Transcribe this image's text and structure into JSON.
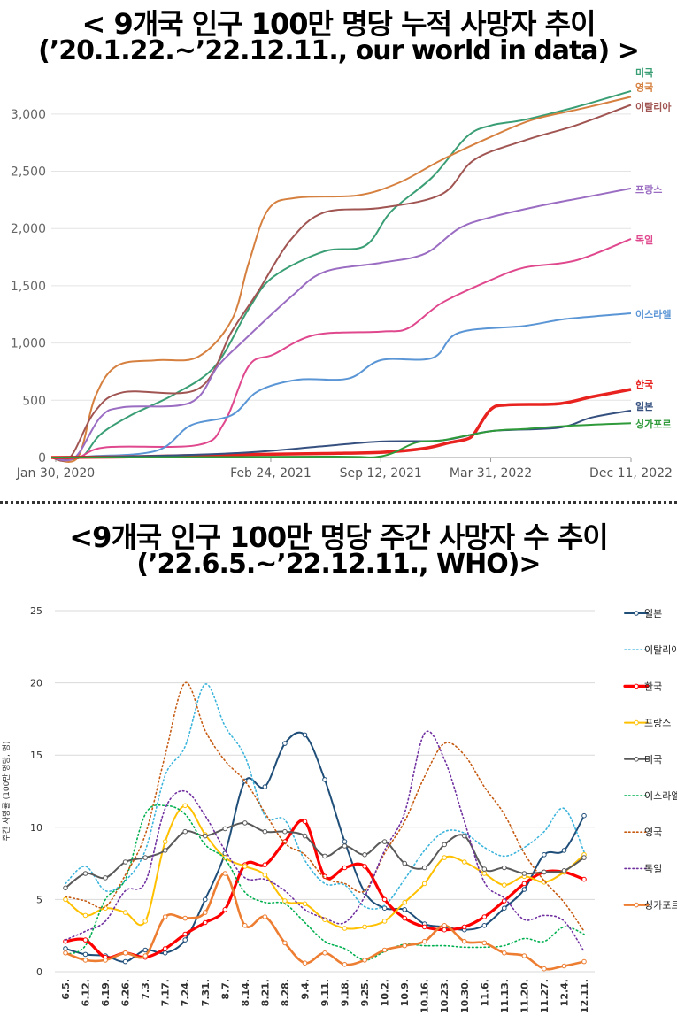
{
  "titles": {
    "top_line1": "< 9개국 인구 100만 명당 누적 사망자 추이",
    "top_line2": "(’20.1.22.~’22.12.11., our world in data) >",
    "bottom_line1": "<9개국 인구 100만 명당 주간 사망자 수 추이",
    "bottom_line2": "(’22.6.5.~’22.12.11., WHO)>"
  },
  "chart_data": [
    {
      "type": "line",
      "x_tick_labels": [
        "Jan 30, 2020",
        "Feb 24, 2021",
        "Sep 12, 2021",
        "Mar 31, 2022",
        "Dec 11, 2022"
      ],
      "x_tick_dates": [
        "2020-01-30",
        "2021-02-24",
        "2021-09-12",
        "2022-03-31",
        "2022-12-11"
      ],
      "x_range": [
        "2020-01-22",
        "2022-12-11"
      ],
      "ylim": [
        0,
        3300
      ],
      "y_ticks": [
        0,
        500,
        1000,
        1500,
        2000,
        2500,
        3000
      ],
      "y_tick_labels": [
        "0",
        "500",
        "1,000",
        "1,500",
        "2,000",
        "2,500",
        "3,000"
      ],
      "grid": true,
      "legend": "line-end labels",
      "series": [
        {
          "name": "미국",
          "color": "#3a9e75",
          "points": [
            [
              "2020-01-22",
              0
            ],
            [
              "2020-03-15",
              0
            ],
            [
              "2020-04-20",
              200
            ],
            [
              "2020-06-15",
              370
            ],
            [
              "2020-09-01",
              550
            ],
            [
              "2020-11-15",
              800
            ],
            [
              "2021-01-15",
              1300
            ],
            [
              "2021-03-01",
              1580
            ],
            [
              "2021-06-01",
              1800
            ],
            [
              "2021-08-15",
              1850
            ],
            [
              "2021-10-01",
              2150
            ],
            [
              "2021-12-15",
              2450
            ],
            [
              "2022-02-15",
              2800
            ],
            [
              "2022-03-31",
              2900
            ],
            [
              "2022-06-01",
              2950
            ],
            [
              "2022-09-01",
              3060
            ],
            [
              "2022-12-11",
              3200
            ]
          ]
        },
        {
          "name": "영국",
          "color": "#d68040",
          "points": [
            [
              "2020-01-22",
              0
            ],
            [
              "2020-03-10",
              0
            ],
            [
              "2020-04-10",
              520
            ],
            [
              "2020-05-20",
              800
            ],
            [
              "2020-08-01",
              850
            ],
            [
              "2020-10-15",
              880
            ],
            [
              "2020-12-15",
              1200
            ],
            [
              "2021-01-15",
              1700
            ],
            [
              "2021-02-20",
              2170
            ],
            [
              "2021-04-15",
              2270
            ],
            [
              "2021-08-01",
              2290
            ],
            [
              "2021-10-15",
              2400
            ],
            [
              "2022-01-01",
              2600
            ],
            [
              "2022-03-31",
              2800
            ],
            [
              "2022-06-15",
              2950
            ],
            [
              "2022-09-15",
              3050
            ],
            [
              "2022-12-11",
              3150
            ]
          ]
        },
        {
          "name": "이탈리아",
          "color": "#a05552",
          "points": [
            [
              "2020-01-22",
              0
            ],
            [
              "2020-02-25",
              0
            ],
            [
              "2020-04-10",
              400
            ],
            [
              "2020-06-01",
              570
            ],
            [
              "2020-10-15",
              600
            ],
            [
              "2020-12-15",
              1100
            ],
            [
              "2021-02-01",
              1450
            ],
            [
              "2021-04-01",
              1900
            ],
            [
              "2021-06-01",
              2140
            ],
            [
              "2021-09-12",
              2180
            ],
            [
              "2022-01-01",
              2300
            ],
            [
              "2022-03-01",
              2600
            ],
            [
              "2022-06-01",
              2770
            ],
            [
              "2022-09-01",
              2900
            ],
            [
              "2022-12-11",
              3080
            ]
          ]
        },
        {
          "name": "프랑스",
          "color": "#9a6cc2",
          "points": [
            [
              "2020-01-22",
              0
            ],
            [
              "2020-03-05",
              0
            ],
            [
              "2020-04-20",
              350
            ],
            [
              "2020-06-01",
              440
            ],
            [
              "2020-10-01",
              480
            ],
            [
              "2020-11-20",
              800
            ],
            [
              "2021-01-01",
              1000
            ],
            [
              "2021-04-01",
              1400
            ],
            [
              "2021-06-01",
              1620
            ],
            [
              "2021-09-12",
              1700
            ],
            [
              "2021-12-01",
              1780
            ],
            [
              "2022-02-01",
              2000
            ],
            [
              "2022-04-01",
              2100
            ],
            [
              "2022-07-01",
              2200
            ],
            [
              "2022-09-15",
              2270
            ],
            [
              "2022-12-11",
              2350
            ]
          ]
        },
        {
          "name": "독일",
          "color": "#e0488e",
          "points": [
            [
              "2020-01-22",
              0
            ],
            [
              "2020-03-10",
              0
            ],
            [
              "2020-05-01",
              90
            ],
            [
              "2020-10-15",
              110
            ],
            [
              "2020-12-01",
              300
            ],
            [
              "2021-01-15",
              800
            ],
            [
              "2021-03-01",
              900
            ],
            [
              "2021-05-15",
              1070
            ],
            [
              "2021-09-12",
              1100
            ],
            [
              "2021-11-01",
              1130
            ],
            [
              "2022-01-01",
              1350
            ],
            [
              "2022-03-31",
              1550
            ],
            [
              "2022-06-01",
              1660
            ],
            [
              "2022-09-01",
              1720
            ],
            [
              "2022-12-11",
              1910
            ]
          ]
        },
        {
          "name": "이스라엘",
          "color": "#5a95d5",
          "points": [
            [
              "2020-01-22",
              0
            ],
            [
              "2020-04-01",
              10
            ],
            [
              "2020-08-01",
              60
            ],
            [
              "2020-10-01",
              280
            ],
            [
              "2020-12-15",
              370
            ],
            [
              "2021-02-01",
              580
            ],
            [
              "2021-04-15",
              680
            ],
            [
              "2021-07-15",
              690
            ],
            [
              "2021-09-12",
              850
            ],
            [
              "2021-12-15",
              870
            ],
            [
              "2022-02-01",
              1090
            ],
            [
              "2022-06-01",
              1150
            ],
            [
              "2022-08-15",
              1210
            ],
            [
              "2022-12-11",
              1260
            ]
          ]
        },
        {
          "name": "한국",
          "color": "#e8221e",
          "points": [
            [
              "2020-01-22",
              0
            ],
            [
              "2020-06-01",
              5
            ],
            [
              "2021-01-01",
              25
            ],
            [
              "2021-06-01",
              35
            ],
            [
              "2021-09-12",
              45
            ],
            [
              "2021-12-01",
              80
            ],
            [
              "2022-01-15",
              130
            ],
            [
              "2022-02-15",
              160
            ],
            [
              "2022-03-01",
              210
            ],
            [
              "2022-03-31",
              420
            ],
            [
              "2022-05-01",
              460
            ],
            [
              "2022-08-01",
              470
            ],
            [
              "2022-10-01",
              530
            ],
            [
              "2022-12-11",
              595
            ]
          ]
        },
        {
          "name": "일본",
          "color": "#35507f",
          "points": [
            [
              "2020-01-22",
              0
            ],
            [
              "2020-06-01",
              8
            ],
            [
              "2021-01-01",
              40
            ],
            [
              "2021-06-01",
              100
            ],
            [
              "2021-09-12",
              140
            ],
            [
              "2022-01-01",
              150
            ],
            [
              "2022-03-31",
              230
            ],
            [
              "2022-08-01",
              260
            ],
            [
              "2022-10-01",
              350
            ],
            [
              "2022-12-11",
              410
            ]
          ]
        },
        {
          "name": "싱가포르",
          "color": "#2f9a3a",
          "points": [
            [
              "2020-01-22",
              0
            ],
            [
              "2021-06-01",
              8
            ],
            [
              "2021-09-12",
              10
            ],
            [
              "2021-11-15",
              130
            ],
            [
              "2022-01-01",
              150
            ],
            [
              "2022-03-31",
              230
            ],
            [
              "2022-06-01",
              250
            ],
            [
              "2022-09-01",
              280
            ],
            [
              "2022-12-11",
              300
            ]
          ]
        }
      ]
    },
    {
      "type": "line",
      "ylabel": "주간 사망률 (100만 명당, 명)",
      "categories": [
        "6.5.",
        "6.12.",
        "6.19.",
        "6.26.",
        "7.3.",
        "7.17.",
        "7.24.",
        "7.31.",
        "8.7.",
        "8.14.",
        "8.21.",
        "8.28.",
        "9.4.",
        "9.11.",
        "9.18.",
        "9.25.",
        "10.2.",
        "10.9.",
        "10.16.",
        "10.23.",
        "10.30.",
        "11.6.",
        "11.13.",
        "11.20.",
        "11.27.",
        "12.4.",
        "12.11."
      ],
      "ylim": [
        0,
        25
      ],
      "y_ticks": [
        0,
        5,
        10,
        15,
        20,
        25
      ],
      "grid": true,
      "legend": "right",
      "series": [
        {
          "name": "일본",
          "color": "#1f4e79",
          "dash": "solid",
          "width": 2,
          "values": [
            1.6,
            1.2,
            1.1,
            0.7,
            1.5,
            1.3,
            2.2,
            5.0,
            8.2,
            13.2,
            12.8,
            15.8,
            16.4,
            13.3,
            9.0,
            5.5,
            4.4,
            4.3,
            3.3,
            3.1,
            2.9,
            3.2,
            4.4,
            5.7,
            8.1,
            8.4,
            10.8
          ]
        },
        {
          "name": "이탈리아",
          "color": "#3bb4dc",
          "dash": "dot",
          "width": 1.6,
          "values": [
            6.1,
            7.3,
            5.6,
            6.3,
            8.4,
            13.6,
            15.6,
            19.9,
            17.0,
            14.9,
            10.8,
            10.5,
            7.7,
            6.1,
            6.0,
            4.5,
            4.6,
            6.4,
            8.4,
            9.7,
            9.6,
            8.6,
            8.0,
            8.6,
            9.7,
            11.3,
            8.3
          ]
        },
        {
          "name": "한국",
          "color": "#ff0000",
          "dash": "solid",
          "width": 3.2,
          "values": [
            2.1,
            2.2,
            1.0,
            1.3,
            1.0,
            1.6,
            2.6,
            3.4,
            4.3,
            7.4,
            7.4,
            9.0,
            10.4,
            6.6,
            7.2,
            7.3,
            5.0,
            3.7,
            3.1,
            2.9,
            3.1,
            3.8,
            4.9,
            6.1,
            6.9,
            6.9,
            6.4
          ]
        },
        {
          "name": "프랑스",
          "color": "#ffc000",
          "dash": "solid",
          "width": 2,
          "values": [
            5.0,
            3.9,
            4.4,
            4.1,
            3.5,
            9.0,
            11.5,
            9.5,
            7.9,
            7.3,
            6.7,
            4.9,
            4.7,
            3.6,
            3.0,
            3.1,
            3.5,
            4.8,
            6.1,
            7.9,
            7.6,
            6.8,
            6.0,
            6.6,
            6.2,
            6.9,
            8.1
          ]
        },
        {
          "name": "미국",
          "color": "#595959",
          "dash": "solid",
          "width": 2,
          "values": [
            5.8,
            6.8,
            6.5,
            7.6,
            7.9,
            8.4,
            9.7,
            9.4,
            9.9,
            10.3,
            9.7,
            9.7,
            9.4,
            8.0,
            8.7,
            8.1,
            9.0,
            7.5,
            7.2,
            8.8,
            9.4,
            7.1,
            7.2,
            6.8,
            6.9,
            7.0,
            7.9
          ]
        },
        {
          "name": "이스라엘",
          "color": "#00b050",
          "dash": "dot",
          "width": 1.6,
          "values": [
            1.2,
            1.8,
            5.0,
            6.4,
            10.9,
            11.5,
            10.9,
            8.8,
            7.8,
            5.5,
            4.8,
            4.7,
            3.4,
            2.1,
            1.6,
            0.8,
            1.4,
            1.9,
            1.8,
            1.8,
            1.7,
            1.7,
            1.8,
            2.3,
            2.1,
            3.1,
            2.6
          ]
        },
        {
          "name": "영국",
          "color": "#c55a11",
          "dash": "dot",
          "width": 1.6,
          "values": [
            5.2,
            4.9,
            4.5,
            6.7,
            9.5,
            15.0,
            20.0,
            16.7,
            14.6,
            13.2,
            11.0,
            8.9,
            8.1,
            6.5,
            6.1,
            5.6,
            8.2,
            10.4,
            13.5,
            15.8,
            15.0,
            12.8,
            10.9,
            8.2,
            6.3,
            4.8,
            2.8
          ]
        },
        {
          "name": "독일",
          "color": "#7030a0",
          "dash": "dot",
          "width": 1.6,
          "values": [
            2.2,
            2.8,
            3.5,
            5.6,
            6.2,
            11.3,
            12.5,
            10.8,
            8.4,
            6.5,
            6.4,
            5.6,
            4.3,
            3.7,
            3.4,
            5.2,
            8.4,
            11.0,
            16.5,
            14.7,
            10.4,
            6.2,
            5.1,
            3.6,
            3.9,
            3.5,
            1.4
          ]
        },
        {
          "name": "싱가포르",
          "color": "#ed7d31",
          "dash": "solid",
          "width": 2.6,
          "values": [
            1.3,
            0.8,
            0.8,
            1.3,
            1.1,
            3.8,
            3.7,
            4.1,
            6.8,
            3.2,
            3.8,
            2.0,
            0.6,
            1.3,
            0.5,
            0.8,
            1.5,
            1.8,
            2.1,
            3.2,
            2.1,
            2.0,
            1.3,
            1.1,
            0.2,
            0.4,
            0.7
          ]
        }
      ]
    }
  ]
}
